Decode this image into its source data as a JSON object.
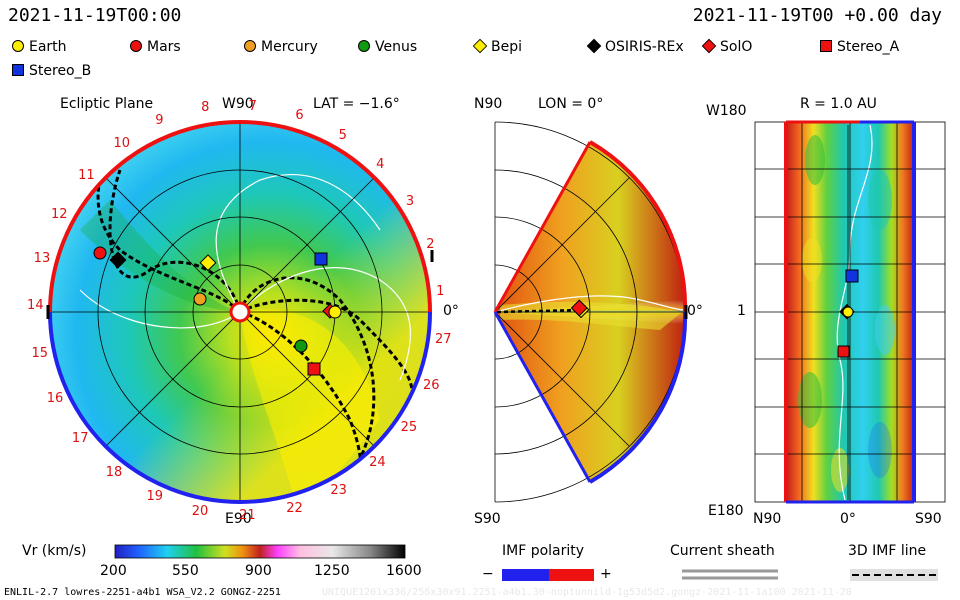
{
  "header": {
    "left_time": "2021-11-19T00:00",
    "right_time": "2021-11-19T00 +0.00 day"
  },
  "legend": [
    {
      "label": "Earth",
      "color": "#ffee00",
      "shape": "dot"
    },
    {
      "label": "Mars",
      "color": "#ee1111",
      "shape": "dot"
    },
    {
      "label": "Mercury",
      "color": "#f0a020",
      "shape": "dot"
    },
    {
      "label": "Venus",
      "color": "#119911",
      "shape": "dot"
    },
    {
      "label": "Bepi",
      "color": "#ffee00",
      "shape": "diamond"
    },
    {
      "label": "OSIRIS-REx",
      "color": "#000000",
      "shape": "diamond"
    },
    {
      "label": "SolO",
      "color": "#ee1111",
      "shape": "diamond"
    },
    {
      "label": "Stereo_A",
      "color": "#ee1111",
      "shape": "square"
    },
    {
      "label": "Stereo_B",
      "color": "#1133dd",
      "shape": "square"
    }
  ],
  "ecliptic": {
    "title": "Ecliptic Plane",
    "top": "W90",
    "bottom": "E90",
    "right": "0°",
    "lat": "LAT = −1.6°",
    "carrington": [
      "1",
      "2",
      "3",
      "4",
      "5",
      "6",
      "7",
      "8",
      "9",
      "10",
      "11",
      "12",
      "13",
      "14",
      "15",
      "16",
      "17",
      "18",
      "19",
      "20",
      "21",
      "22",
      "23",
      "24",
      "25",
      "26",
      "27"
    ]
  },
  "meridional": {
    "lon": "LON = 0°",
    "top": "N90",
    "bottom": "S90",
    "right": "0°"
  },
  "latlon": {
    "title": "R = 1.0 AU",
    "top_left": "W180",
    "mid_left": "1",
    "bottom_left": "E180",
    "bottom_labels": [
      "N90",
      "0°",
      "S90"
    ]
  },
  "colorbar": {
    "label": "Vr (km/s)",
    "ticks": [
      "200",
      "550",
      "900",
      "1250",
      "1600"
    ]
  },
  "bottom_legends": {
    "imf_polarity": "IMF polarity",
    "minus": "−",
    "plus": "+",
    "current_sheath": "Current sheath",
    "imf_line": "3D IMF line"
  },
  "footer": {
    "left": "ENLIL-2.7 lowres-2251-a4b1 WSA_V2.2 GONGZ-2251",
    "right": "UNIQUE1201x336/256x30x91.2251-a4b1.30-noptunnild-1g53d5d2.gongz-2021-11-1a100   2021-11-20"
  },
  "colors": {
    "red_accent": "#dd1111",
    "positive": "#ee1111",
    "negative": "#2222ee"
  }
}
